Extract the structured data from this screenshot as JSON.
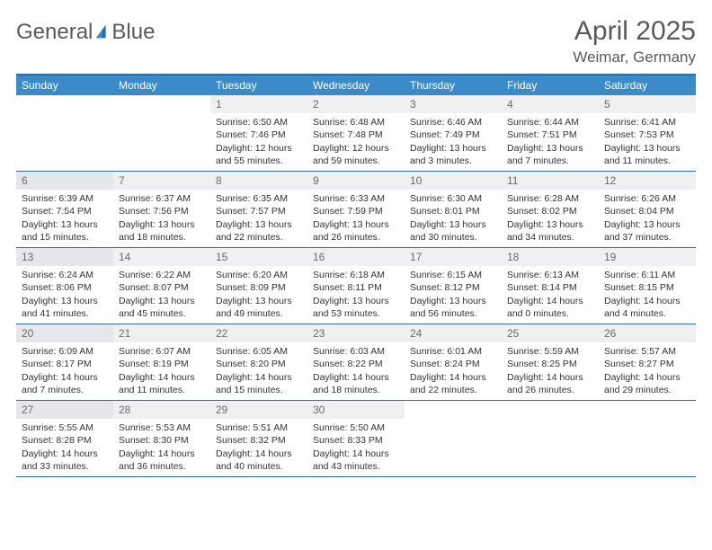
{
  "brand": {
    "part1": "General",
    "part2": "Blue"
  },
  "colors": {
    "accent": "#3b8bc8",
    "accent_dark": "#2f6ca3",
    "logo_gray": "#5a5a5a",
    "logo_blue": "#1f6bb0",
    "daynum_bg": "#eef0f2",
    "daynum_bg_sun": "#e5e7ea",
    "text": "#333333",
    "bg": "#ffffff"
  },
  "typography": {
    "base_font": "Arial",
    "month_title_size_pt": 22,
    "location_size_pt": 13,
    "dayhead_size_pt": 9,
    "cell_size_pt": 8
  },
  "title": "April 2025",
  "location": "Weimar, Germany",
  "day_headers": [
    "Sunday",
    "Monday",
    "Tuesday",
    "Wednesday",
    "Thursday",
    "Friday",
    "Saturday"
  ],
  "weeks": [
    [
      null,
      null,
      {
        "n": "1",
        "sunrise": "6:50 AM",
        "sunset": "7:46 PM",
        "daylight": "12 hours and 55 minutes."
      },
      {
        "n": "2",
        "sunrise": "6:48 AM",
        "sunset": "7:48 PM",
        "daylight": "12 hours and 59 minutes."
      },
      {
        "n": "3",
        "sunrise": "6:46 AM",
        "sunset": "7:49 PM",
        "daylight": "13 hours and 3 minutes."
      },
      {
        "n": "4",
        "sunrise": "6:44 AM",
        "sunset": "7:51 PM",
        "daylight": "13 hours and 7 minutes."
      },
      {
        "n": "5",
        "sunrise": "6:41 AM",
        "sunset": "7:53 PM",
        "daylight": "13 hours and 11 minutes."
      }
    ],
    [
      {
        "n": "6",
        "sunrise": "6:39 AM",
        "sunset": "7:54 PM",
        "daylight": "13 hours and 15 minutes."
      },
      {
        "n": "7",
        "sunrise": "6:37 AM",
        "sunset": "7:56 PM",
        "daylight": "13 hours and 18 minutes."
      },
      {
        "n": "8",
        "sunrise": "6:35 AM",
        "sunset": "7:57 PM",
        "daylight": "13 hours and 22 minutes."
      },
      {
        "n": "9",
        "sunrise": "6:33 AM",
        "sunset": "7:59 PM",
        "daylight": "13 hours and 26 minutes."
      },
      {
        "n": "10",
        "sunrise": "6:30 AM",
        "sunset": "8:01 PM",
        "daylight": "13 hours and 30 minutes."
      },
      {
        "n": "11",
        "sunrise": "6:28 AM",
        "sunset": "8:02 PM",
        "daylight": "13 hours and 34 minutes."
      },
      {
        "n": "12",
        "sunrise": "6:26 AM",
        "sunset": "8:04 PM",
        "daylight": "13 hours and 37 minutes."
      }
    ],
    [
      {
        "n": "13",
        "sunrise": "6:24 AM",
        "sunset": "8:06 PM",
        "daylight": "13 hours and 41 minutes."
      },
      {
        "n": "14",
        "sunrise": "6:22 AM",
        "sunset": "8:07 PM",
        "daylight": "13 hours and 45 minutes."
      },
      {
        "n": "15",
        "sunrise": "6:20 AM",
        "sunset": "8:09 PM",
        "daylight": "13 hours and 49 minutes."
      },
      {
        "n": "16",
        "sunrise": "6:18 AM",
        "sunset": "8:11 PM",
        "daylight": "13 hours and 53 minutes."
      },
      {
        "n": "17",
        "sunrise": "6:15 AM",
        "sunset": "8:12 PM",
        "daylight": "13 hours and 56 minutes."
      },
      {
        "n": "18",
        "sunrise": "6:13 AM",
        "sunset": "8:14 PM",
        "daylight": "14 hours and 0 minutes."
      },
      {
        "n": "19",
        "sunrise": "6:11 AM",
        "sunset": "8:15 PM",
        "daylight": "14 hours and 4 minutes."
      }
    ],
    [
      {
        "n": "20",
        "sunrise": "6:09 AM",
        "sunset": "8:17 PM",
        "daylight": "14 hours and 7 minutes."
      },
      {
        "n": "21",
        "sunrise": "6:07 AM",
        "sunset": "8:19 PM",
        "daylight": "14 hours and 11 minutes."
      },
      {
        "n": "22",
        "sunrise": "6:05 AM",
        "sunset": "8:20 PM",
        "daylight": "14 hours and 15 minutes."
      },
      {
        "n": "23",
        "sunrise": "6:03 AM",
        "sunset": "8:22 PM",
        "daylight": "14 hours and 18 minutes."
      },
      {
        "n": "24",
        "sunrise": "6:01 AM",
        "sunset": "8:24 PM",
        "daylight": "14 hours and 22 minutes."
      },
      {
        "n": "25",
        "sunrise": "5:59 AM",
        "sunset": "8:25 PM",
        "daylight": "14 hours and 26 minutes."
      },
      {
        "n": "26",
        "sunrise": "5:57 AM",
        "sunset": "8:27 PM",
        "daylight": "14 hours and 29 minutes."
      }
    ],
    [
      {
        "n": "27",
        "sunrise": "5:55 AM",
        "sunset": "8:28 PM",
        "daylight": "14 hours and 33 minutes."
      },
      {
        "n": "28",
        "sunrise": "5:53 AM",
        "sunset": "8:30 PM",
        "daylight": "14 hours and 36 minutes."
      },
      {
        "n": "29",
        "sunrise": "5:51 AM",
        "sunset": "8:32 PM",
        "daylight": "14 hours and 40 minutes."
      },
      {
        "n": "30",
        "sunrise": "5:50 AM",
        "sunset": "8:33 PM",
        "daylight": "14 hours and 43 minutes."
      },
      null,
      null,
      null
    ]
  ],
  "labels": {
    "sunrise": "Sunrise:",
    "sunset": "Sunset:",
    "daylight": "Daylight:"
  }
}
